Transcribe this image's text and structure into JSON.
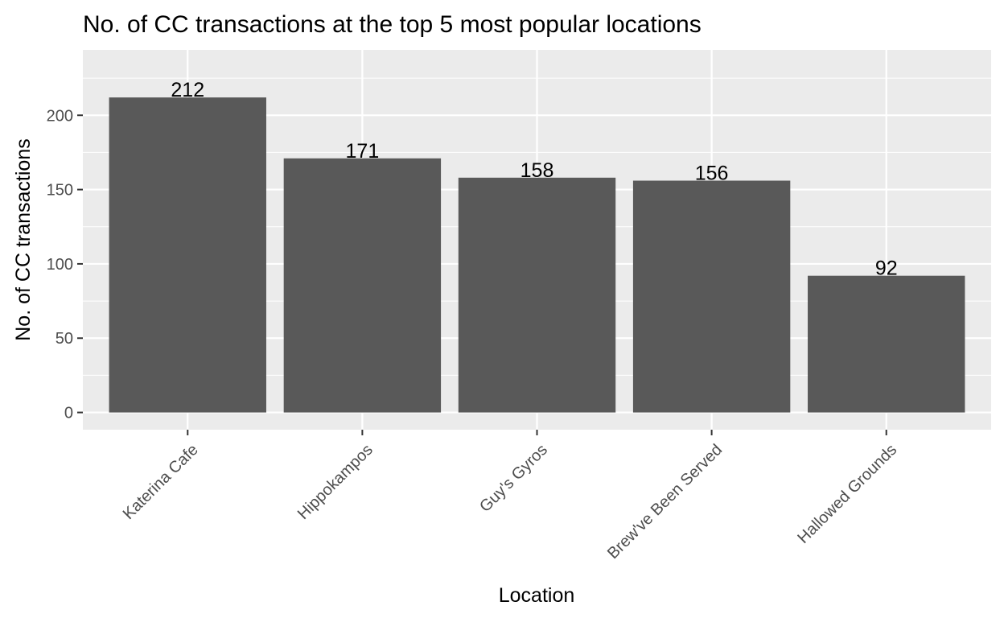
{
  "chart_data": {
    "type": "bar",
    "title": "No. of CC transactions at the top 5 most popular locations",
    "xlabel": "Location",
    "ylabel": "No. of CC transactions",
    "categories": [
      "Katerina Cafe",
      "Hippokampos",
      "Guy's Gyros",
      "Brew've Been Served",
      "Hallowed Grounds"
    ],
    "values": [
      212,
      171,
      158,
      156,
      92
    ],
    "ylim": [
      -11.6,
      244
    ],
    "yticks": [
      0,
      50,
      100,
      150,
      200
    ],
    "ytick_labels": [
      "0",
      "50",
      "100",
      "150",
      "200"
    ],
    "grid": true,
    "legend": "none",
    "colors": {
      "bar": "#595959",
      "panel": "#ebebeb",
      "grid": "#ffffff",
      "tick_text": "#4d4d4d",
      "tick_mark": "#333333"
    }
  }
}
